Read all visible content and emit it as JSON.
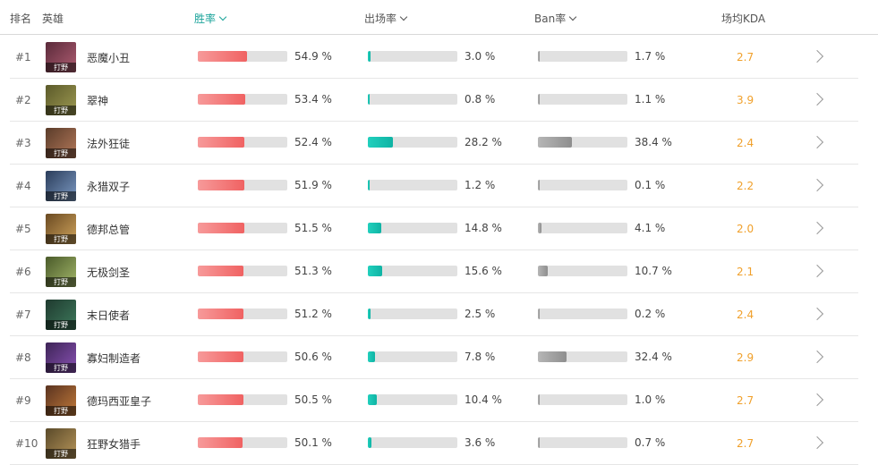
{
  "header": {
    "rank": "排名",
    "hero": "英雄",
    "win_rate": "胜率",
    "pick_rate": "出场率",
    "ban_rate": "Ban率",
    "kda": "场均KDA"
  },
  "colors": {
    "accent": "#1aa39a",
    "win_bar": "#f06262",
    "pick_bar": "#0fb3a4",
    "ban_bar": "#8e8e8e",
    "kda_text": "#f0a02b"
  },
  "rows": [
    {
      "rank": "#1",
      "hero": "恶魔小丑",
      "role": "打野",
      "win": 54.9,
      "win_text": "54.9 %",
      "pick": 3.0,
      "pick_text": "3.0 %",
      "ban": 1.7,
      "ban_text": "1.7 %",
      "kda": "2.7"
    },
    {
      "rank": "#2",
      "hero": "翠神",
      "role": "打野",
      "win": 53.4,
      "win_text": "53.4 %",
      "pick": 0.8,
      "pick_text": "0.8 %",
      "ban": 1.1,
      "ban_text": "1.1 %",
      "kda": "3.9"
    },
    {
      "rank": "#3",
      "hero": "法外狂徒",
      "role": "打野",
      "win": 52.4,
      "win_text": "52.4 %",
      "pick": 28.2,
      "pick_text": "28.2 %",
      "ban": 38.4,
      "ban_text": "38.4 %",
      "kda": "2.4"
    },
    {
      "rank": "#4",
      "hero": "永猎双子",
      "role": "打野",
      "win": 51.9,
      "win_text": "51.9 %",
      "pick": 1.2,
      "pick_text": "1.2 %",
      "ban": 0.1,
      "ban_text": "0.1 %",
      "kda": "2.2"
    },
    {
      "rank": "#5",
      "hero": "德邦总管",
      "role": "打野",
      "win": 51.5,
      "win_text": "51.5 %",
      "pick": 14.8,
      "pick_text": "14.8 %",
      "ban": 4.1,
      "ban_text": "4.1 %",
      "kda": "2.0"
    },
    {
      "rank": "#6",
      "hero": "无极剑圣",
      "role": "打野",
      "win": 51.3,
      "win_text": "51.3 %",
      "pick": 15.6,
      "pick_text": "15.6 %",
      "ban": 10.7,
      "ban_text": "10.7 %",
      "kda": "2.1"
    },
    {
      "rank": "#7",
      "hero": "末日使者",
      "role": "打野",
      "win": 51.2,
      "win_text": "51.2 %",
      "pick": 2.5,
      "pick_text": "2.5 %",
      "ban": 0.2,
      "ban_text": "0.2 %",
      "kda": "2.4"
    },
    {
      "rank": "#8",
      "hero": "寡妇制造者",
      "role": "打野",
      "win": 50.6,
      "win_text": "50.6 %",
      "pick": 7.8,
      "pick_text": "7.8 %",
      "ban": 32.4,
      "ban_text": "32.4 %",
      "kda": "2.9"
    },
    {
      "rank": "#9",
      "hero": "德玛西亚皇子",
      "role": "打野",
      "win": 50.5,
      "win_text": "50.5 %",
      "pick": 10.4,
      "pick_text": "10.4 %",
      "ban": 1.0,
      "ban_text": "1.0 %",
      "kda": "2.7"
    },
    {
      "rank": "#10",
      "hero": "狂野女猎手",
      "role": "打野",
      "win": 50.1,
      "win_text": "50.1 %",
      "pick": 3.6,
      "pick_text": "3.6 %",
      "ban": 0.7,
      "ban_text": "0.7 %",
      "kda": "2.7"
    }
  ]
}
